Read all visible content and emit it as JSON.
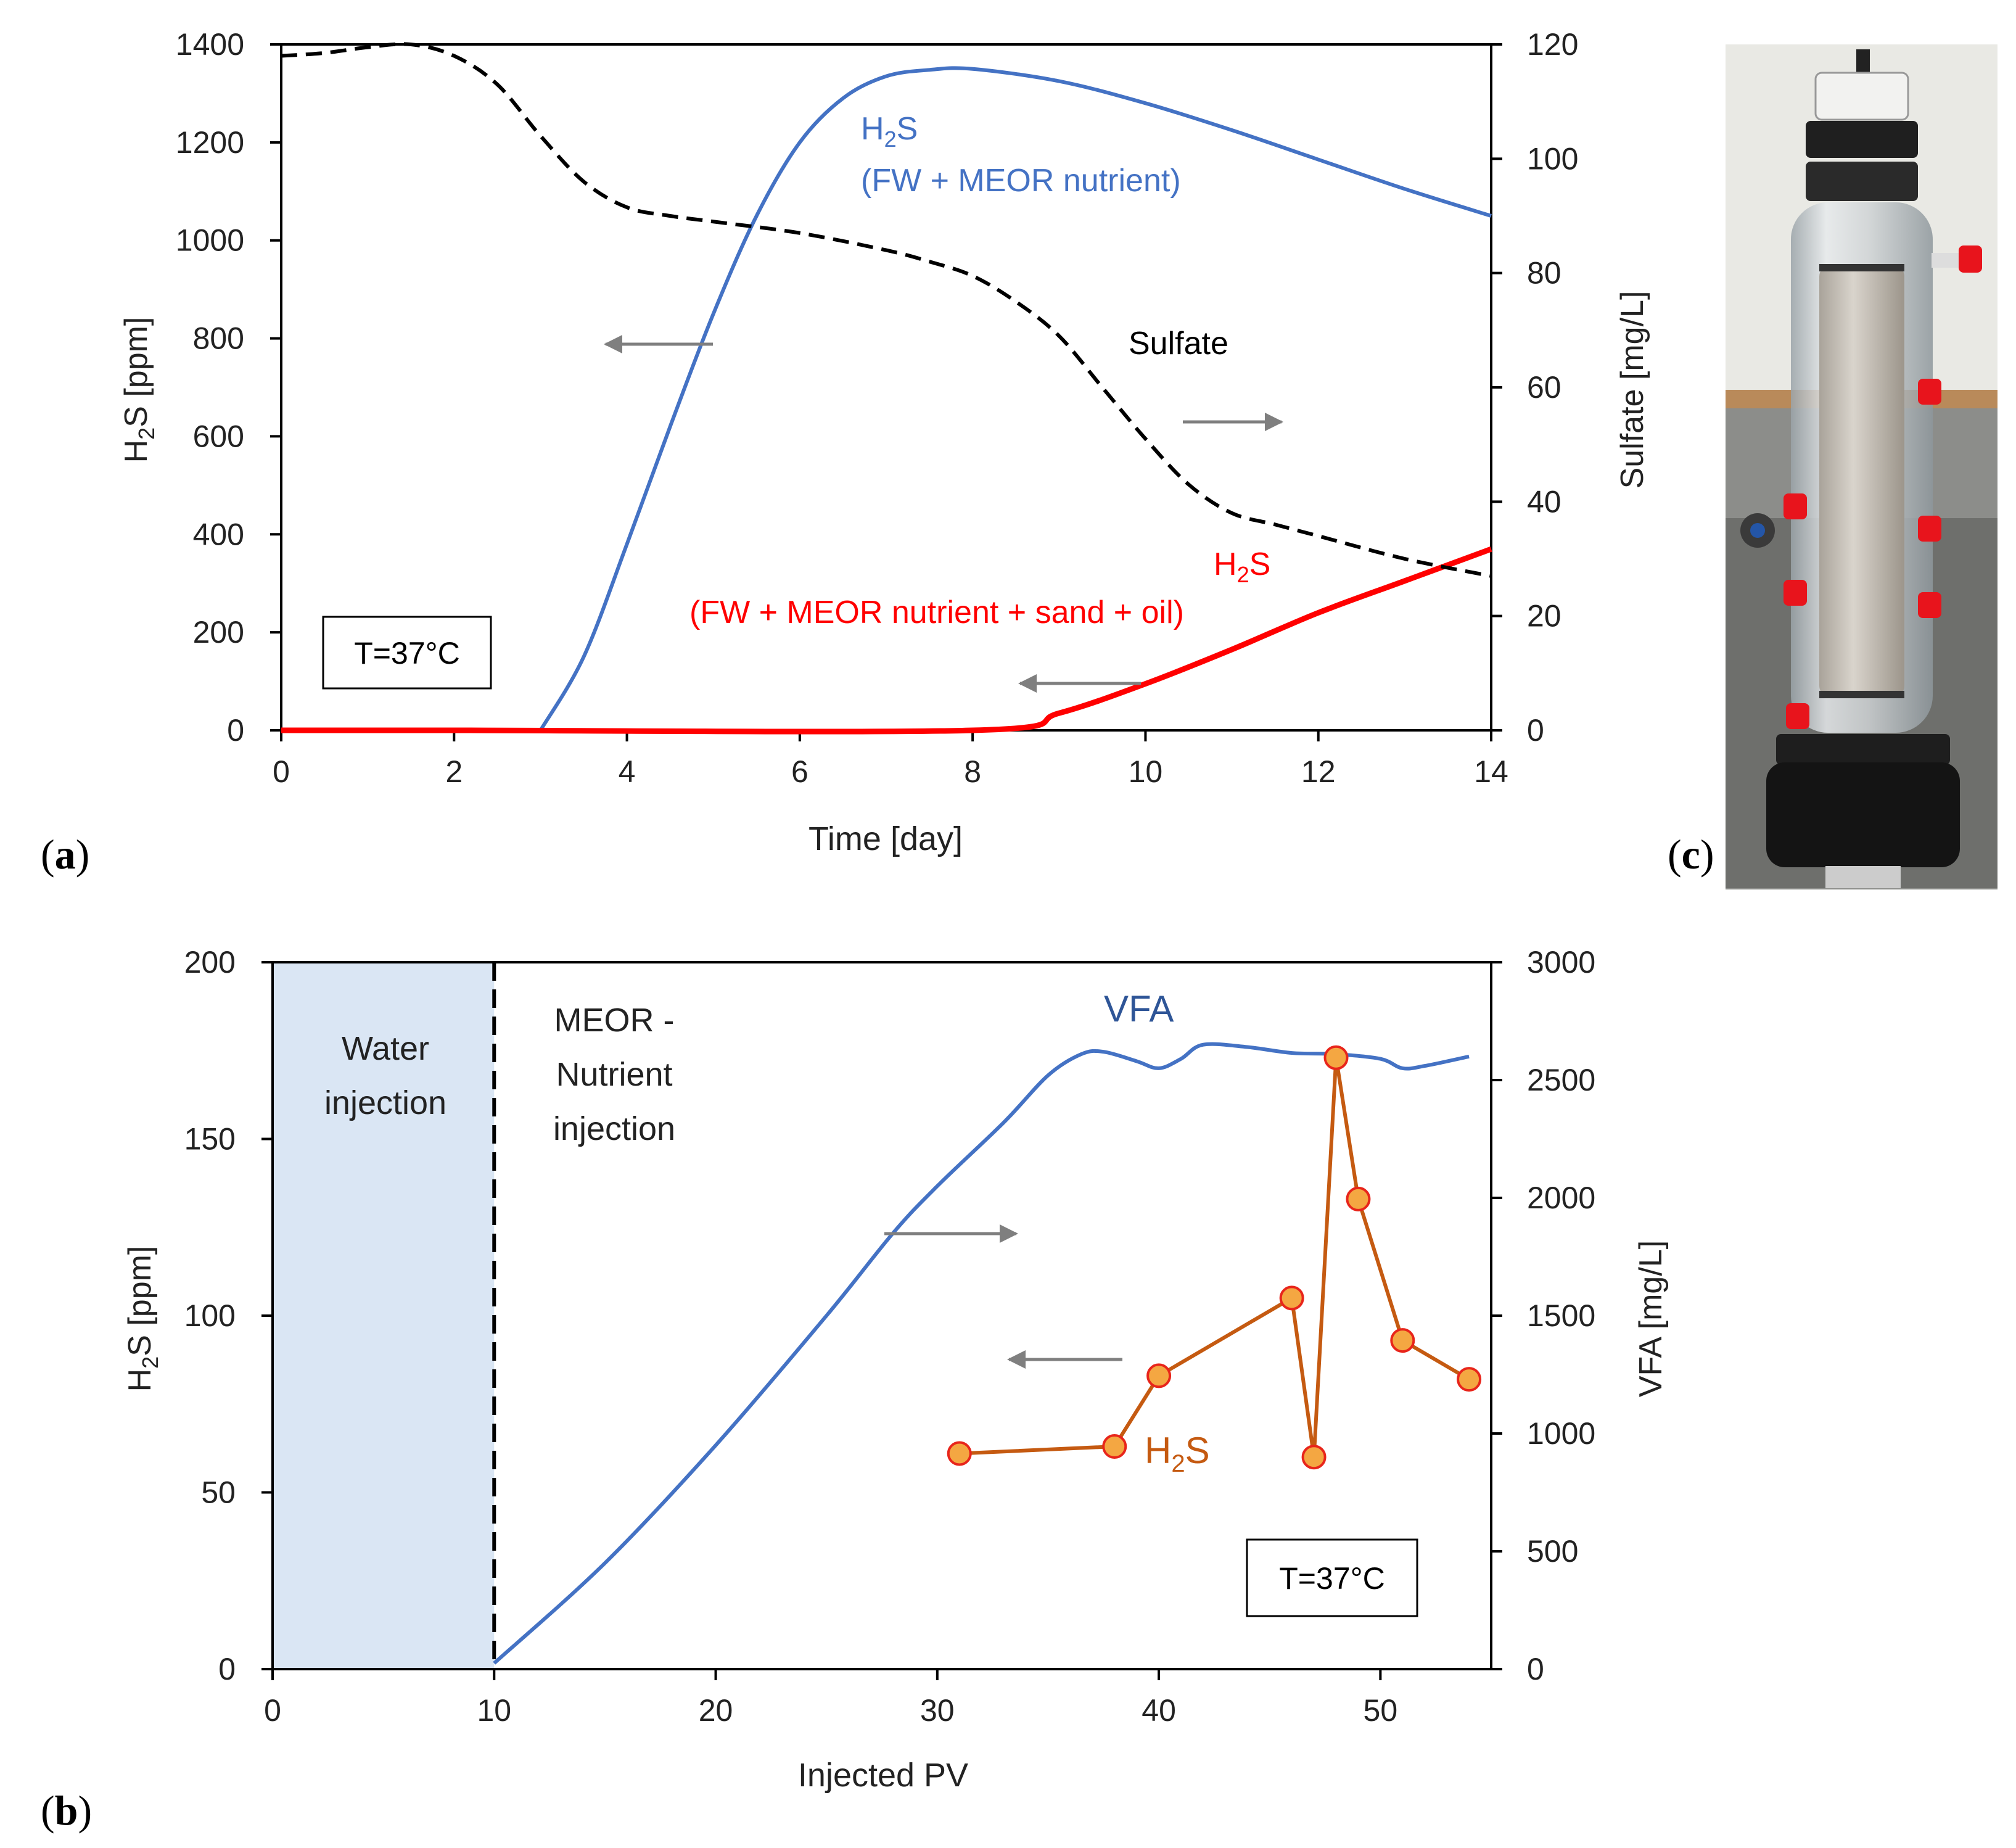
{
  "chart_data": [
    {
      "id": "a",
      "type": "line",
      "panel_label": "a",
      "xlabel": "Time [day]",
      "ylabel_left": "H2S [ppm]",
      "ylabel_right": "Sulfate [mg/L]",
      "xlim": [
        0,
        14
      ],
      "ylim_left": [
        0,
        1400
      ],
      "ylim_right": [
        0,
        120
      ],
      "xticks": [
        0,
        2,
        4,
        6,
        8,
        10,
        12,
        14
      ],
      "yticks_left": [
        0,
        200,
        400,
        600,
        800,
        1000,
        1200,
        1400
      ],
      "yticks_right": [
        0,
        20,
        40,
        60,
        80,
        100,
        120
      ],
      "grid": false,
      "series": [
        {
          "name": "H2S (FW + MEOR nutrient)",
          "axis": "left",
          "color": "#4472C4",
          "x": [
            3.0,
            3.5,
            4.0,
            4.5,
            5.0,
            5.5,
            6.0,
            6.5,
            7.0,
            7.5,
            8.0,
            9.0,
            10.0,
            11.0,
            12.0,
            13.0,
            14.0
          ],
          "y": [
            0,
            150,
            380,
            620,
            850,
            1050,
            1200,
            1290,
            1335,
            1348,
            1350,
            1325,
            1280,
            1225,
            1165,
            1105,
            1050
          ]
        },
        {
          "name": "H2S (FW + MEOR nutrient + sand + oil)",
          "axis": "left",
          "color": "#FF0000",
          "x": [
            0,
            2,
            8.0,
            9.0,
            10.0,
            11.0,
            12.0,
            13.0,
            14.0
          ],
          "y": [
            0,
            0,
            0,
            35,
            95,
            165,
            240,
            305,
            370
          ]
        },
        {
          "name": "Sulfate",
          "axis": "right",
          "color": "#000000",
          "dashed": true,
          "x": [
            0,
            0.5,
            1.0,
            1.5,
            2.0,
            2.5,
            3.0,
            3.5,
            4.0,
            4.5,
            5.0,
            6.0,
            7.0,
            7.5,
            8.0,
            8.5,
            9.0,
            9.5,
            10.0,
            10.5,
            11.0,
            11.5,
            12.0,
            13.0,
            14.0
          ],
          "y": [
            118,
            118.5,
            119.5,
            120,
            118,
            113,
            104,
            96,
            91.5,
            90,
            89,
            87,
            84,
            82,
            79.5,
            75,
            69,
            60,
            51,
            43,
            38,
            36,
            34,
            30,
            27
          ]
        }
      ],
      "annotations": {
        "blue_label_line1": "H",
        "blue_label_sub": "2",
        "blue_label_s": "S",
        "blue_label_line2": "(FW + MEOR nutrient)",
        "sulfate_label": "Sulfate",
        "red_label_line1": "H",
        "red_label_sub": "2",
        "red_label_s": "S",
        "red_label_line2": "(FW + MEOR nutrient + sand + oil)",
        "temp_box": "T=37°C"
      }
    },
    {
      "id": "b",
      "type": "line",
      "panel_label": "b",
      "xlabel": "Injected PV",
      "ylabel_left": "H2S [ppm]",
      "ylabel_right": "VFA [mg/L]",
      "xlim": [
        0,
        55
      ],
      "ylim_left": [
        0,
        200
      ],
      "ylim_right": [
        0,
        3000
      ],
      "xticks": [
        0,
        10,
        20,
        30,
        40,
        50
      ],
      "yticks_left": [
        0,
        50,
        100,
        150,
        200
      ],
      "yticks_right": [
        0,
        500,
        1000,
        1500,
        2000,
        2500,
        3000
      ],
      "grid": false,
      "shaded_region": {
        "x": [
          0,
          10
        ],
        "color": "#DAE6F4"
      },
      "divider_x": 10,
      "series": [
        {
          "name": "VFA",
          "axis": "right",
          "color": "#4472C4",
          "x": [
            10,
            15,
            20,
            25,
            28,
            30,
            33,
            35,
            36.5,
            37.5,
            39,
            40,
            41,
            42,
            44,
            46,
            48,
            50,
            51,
            52,
            54
          ],
          "y": [
            25,
            450,
            950,
            1500,
            1850,
            2050,
            2320,
            2520,
            2610,
            2620,
            2580,
            2550,
            2590,
            2650,
            2640,
            2615,
            2610,
            2590,
            2550,
            2560,
            2600
          ]
        },
        {
          "name": "H2S",
          "axis": "left",
          "color": "#C55A11",
          "marker_fill": "#F4A742",
          "marker_edge": "#E8251B",
          "x": [
            31,
            38,
            40,
            46,
            47,
            48,
            49,
            51,
            54
          ],
          "y": [
            61,
            63,
            83,
            105,
            60,
            173,
            133,
            93,
            82
          ]
        }
      ],
      "annotations": {
        "region1": [
          "Water",
          "injection"
        ],
        "region2": [
          "MEOR -",
          "Nutrient",
          "injection"
        ],
        "vfa_label": "VFA",
        "h2s_label_h": "H",
        "h2s_label_sub": "2",
        "h2s_label_s": "S",
        "temp_box": "T=37°C"
      }
    }
  ],
  "photo": {
    "panel_label": "c",
    "subject": "glass bioreactor column with red ports"
  },
  "colors": {
    "blue": "#4472C4",
    "red": "#FF0000",
    "orange": "#C55A11",
    "arrow": "#7F7F7F",
    "shade": "#DAE6F4"
  }
}
